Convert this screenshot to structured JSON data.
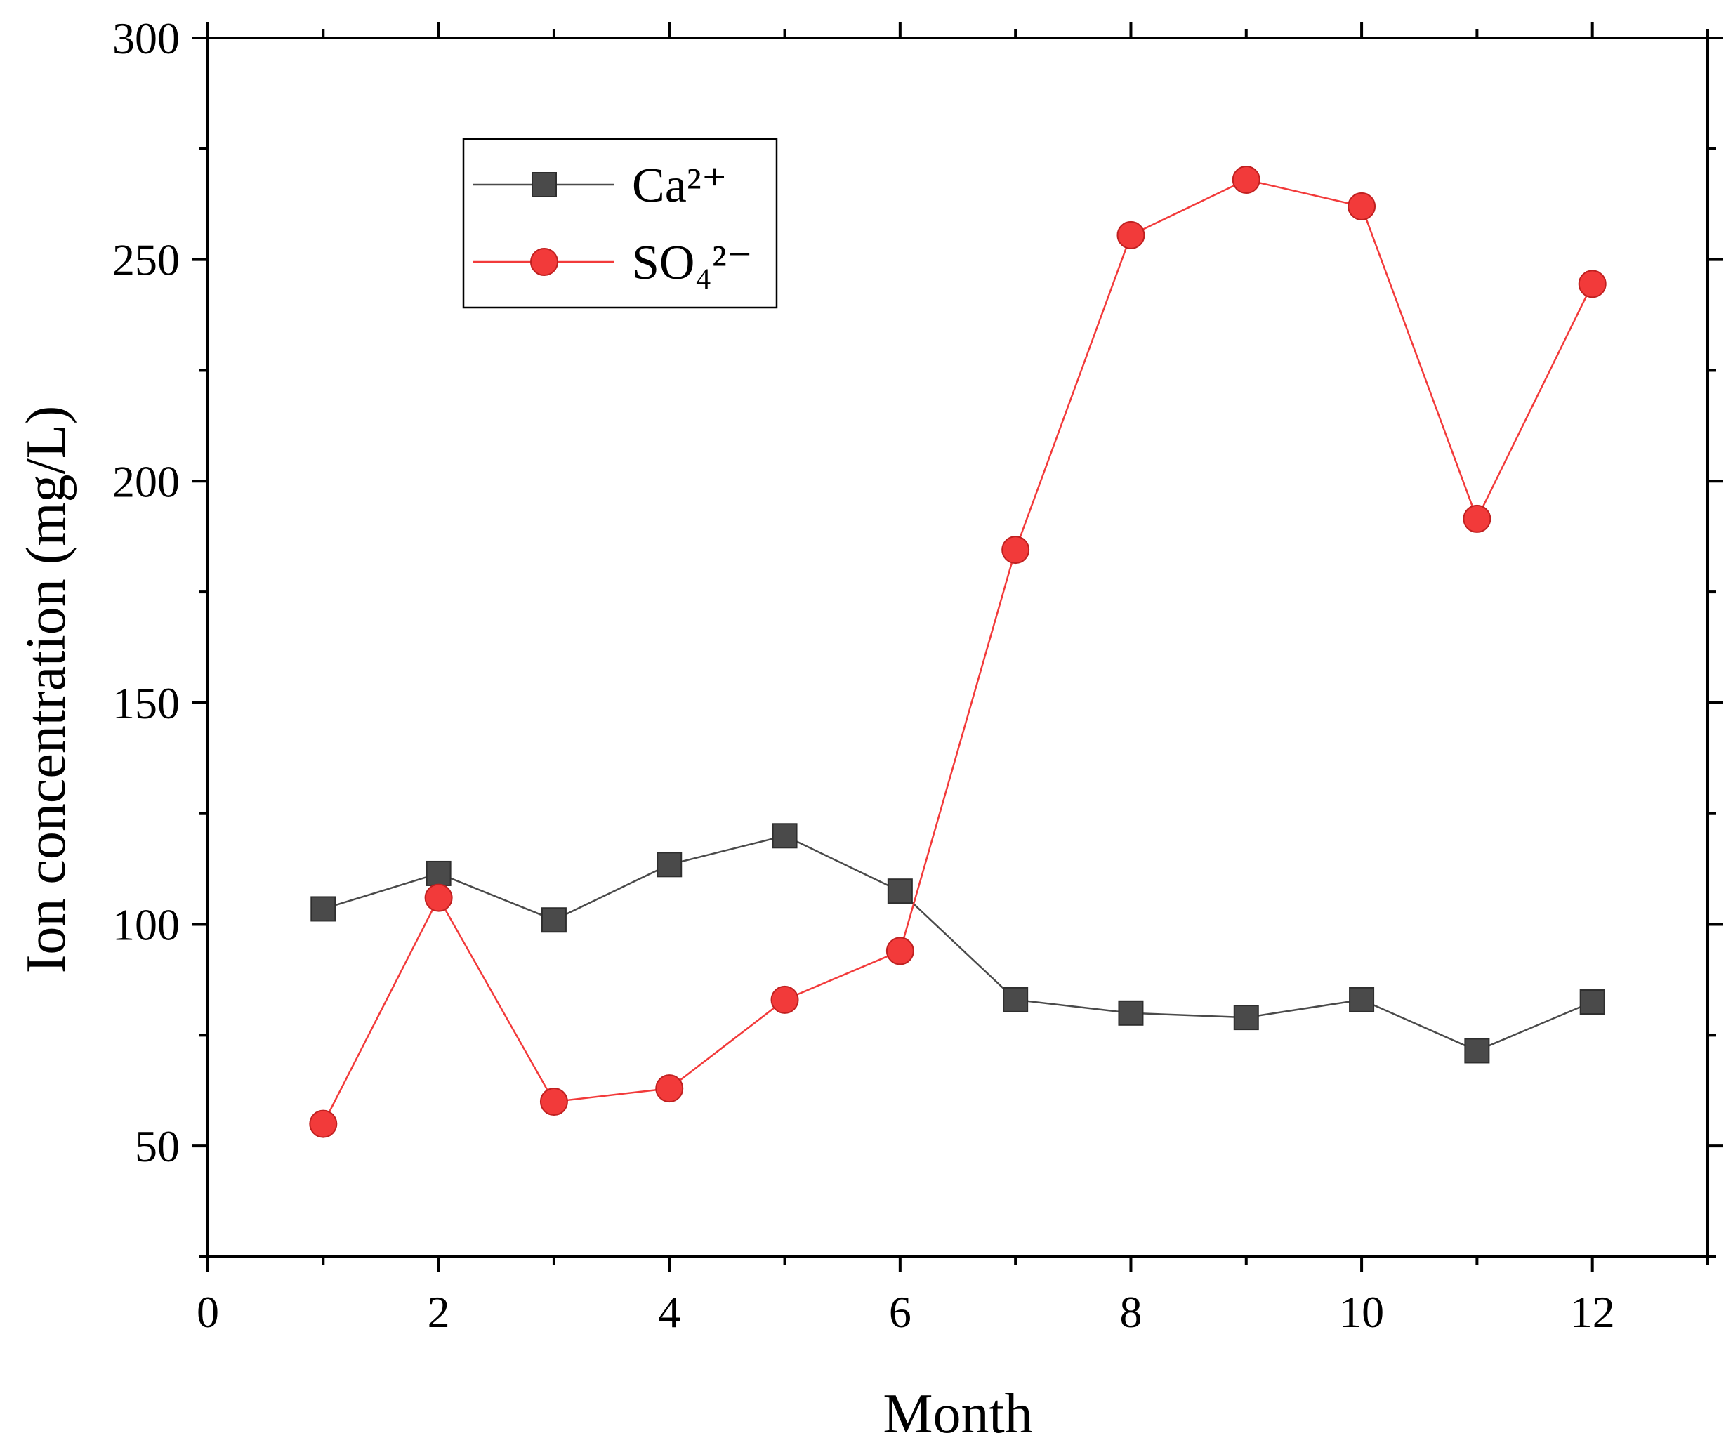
{
  "chart_data": {
    "type": "line",
    "title": "",
    "xlabel": "Month",
    "ylabel": "Ion concentration (mg/L)",
    "xlim": [
      0,
      13
    ],
    "ylim": [
      25,
      300
    ],
    "xticks": [
      0,
      2,
      4,
      6,
      8,
      10,
      12
    ],
    "xtick_labels": [
      "0",
      "2",
      "4",
      "6",
      "8",
      "10",
      "12"
    ],
    "yticks": [
      50,
      100,
      150,
      200,
      250,
      300
    ],
    "ytick_labels": [
      "50",
      "100",
      "150",
      "200",
      "250",
      "300"
    ],
    "grid": false,
    "legend_position": "top-left",
    "x": [
      1,
      2,
      3,
      4,
      5,
      6,
      7,
      8,
      9,
      10,
      11,
      12
    ],
    "series": [
      {
        "name": "Ca²⁺",
        "marker": "square",
        "color": "#4a4a4a",
        "values": [
          103.5,
          111.5,
          101,
          113.5,
          120,
          107.5,
          83,
          80,
          79,
          83,
          71.5,
          82.5
        ]
      },
      {
        "name": "SO₄²⁻",
        "marker": "circle",
        "color": "#f23a3a",
        "values": [
          55,
          106,
          60,
          63,
          83,
          94,
          184.5,
          255.5,
          268,
          262,
          191.5,
          244.5
        ]
      }
    ]
  }
}
